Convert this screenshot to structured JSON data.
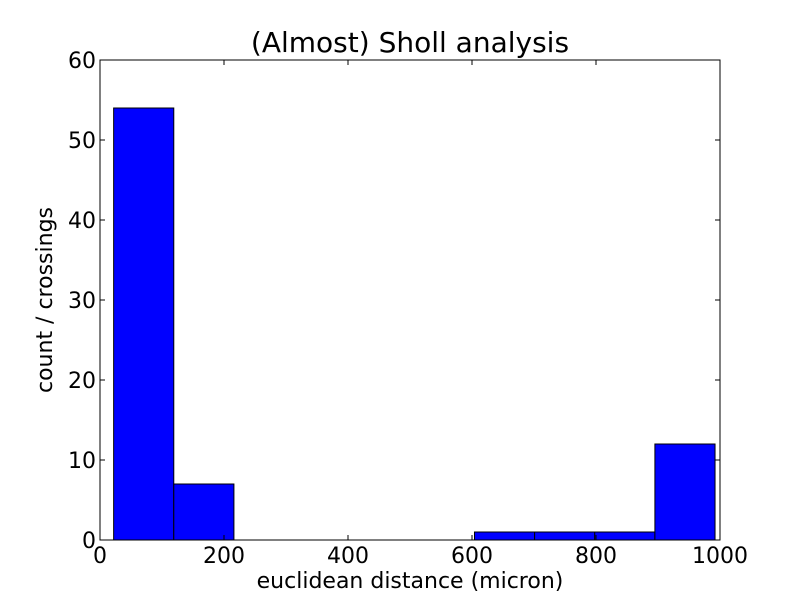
{
  "chart_data": {
    "type": "bar",
    "title": "(Almost) Sholl analysis",
    "xlabel": "euclidean distance (micron)",
    "ylabel": "count / crossings",
    "xlim": [
      0,
      1000
    ],
    "ylim": [
      0,
      60
    ],
    "xticks": [
      "0",
      "200",
      "400",
      "600",
      "800",
      "1000"
    ],
    "yticks": [
      "0",
      "10",
      "20",
      "30",
      "40",
      "50",
      "60"
    ],
    "grid": false,
    "bar_color": "#0000ff",
    "bins": [
      {
        "x0": 22,
        "x1": 119,
        "value": 54
      },
      {
        "x0": 119,
        "x1": 216,
        "value": 7
      },
      {
        "x0": 216,
        "x1": 313,
        "value": 0
      },
      {
        "x0": 313,
        "x1": 410,
        "value": 0
      },
      {
        "x0": 410,
        "x1": 507,
        "value": 0
      },
      {
        "x0": 507,
        "x1": 604,
        "value": 0
      },
      {
        "x0": 604,
        "x1": 701,
        "value": 1
      },
      {
        "x0": 701,
        "x1": 798,
        "value": 1
      },
      {
        "x0": 798,
        "x1": 895,
        "value": 1
      },
      {
        "x0": 895,
        "x1": 992,
        "value": 12
      }
    ]
  }
}
